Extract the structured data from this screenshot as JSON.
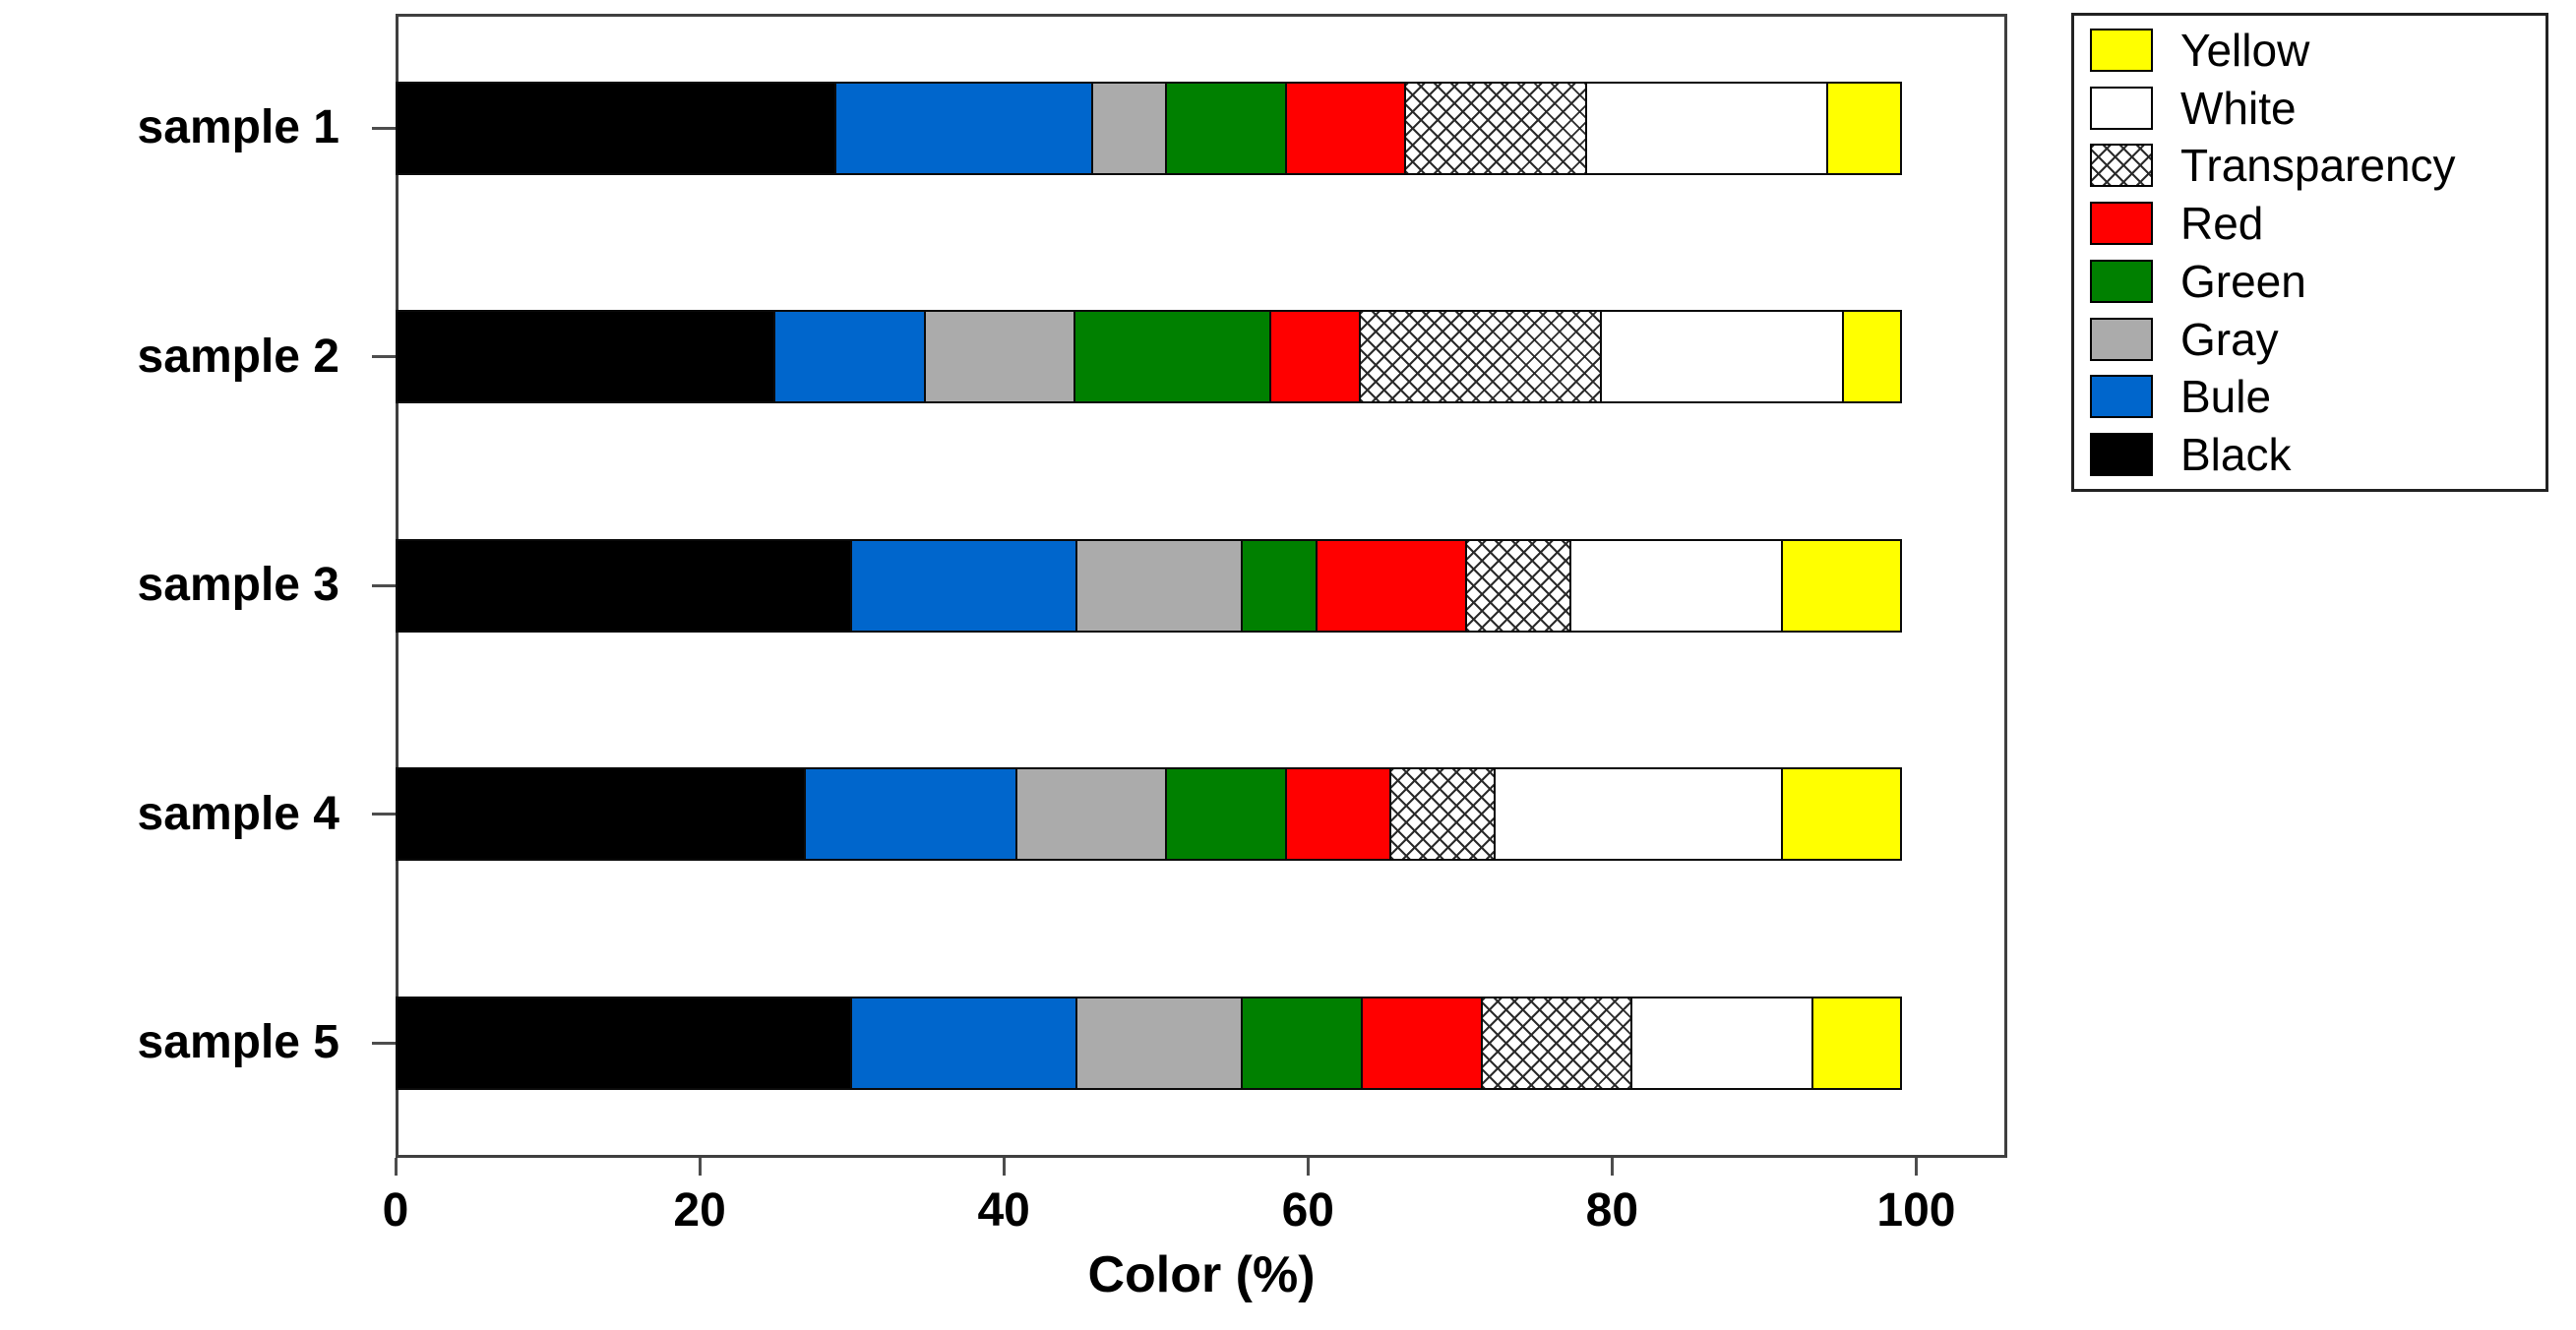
{
  "chart_data": {
    "type": "bar",
    "orientation": "horizontal-stacked",
    "title": "",
    "xlabel": "Color (%)",
    "ylabel": "",
    "categories": [
      "sample 1",
      "sample 2",
      "sample 3",
      "sample 4",
      "sample 5"
    ],
    "series": [
      {
        "name": "Black",
        "color": "#000000",
        "values": [
          29,
          25,
          30,
          27,
          30
        ]
      },
      {
        "name": "Bule",
        "color": "#0066CC",
        "values": [
          17,
          10,
          15,
          14,
          15
        ]
      },
      {
        "name": "Gray",
        "color": "#ABABAB",
        "values": [
          5,
          10,
          11,
          10,
          11
        ]
      },
      {
        "name": "Green",
        "color": "#008000",
        "values": [
          8,
          13,
          5,
          8,
          8
        ]
      },
      {
        "name": "Red",
        "color": "#FF0000",
        "values": [
          8,
          6,
          10,
          7,
          8
        ]
      },
      {
        "name": "Transparency",
        "color": "hatch",
        "values": [
          12,
          16,
          7,
          7,
          10
        ]
      },
      {
        "name": "White",
        "color": "#FFFFFF",
        "values": [
          16,
          16,
          14,
          19,
          12
        ]
      },
      {
        "name": "Yellow",
        "color": "#FFFF00",
        "values": [
          5,
          4,
          8,
          8,
          6
        ]
      }
    ],
    "legend": [
      "Yellow",
      "White",
      "Transparency",
      "Red",
      "Green",
      "Gray",
      "Bule",
      "Black"
    ],
    "legend_position": "upper-right-outside",
    "x_ticks": [
      0,
      20,
      40,
      60,
      80,
      100
    ],
    "xlim": [
      0,
      106
    ],
    "grid": false,
    "axis_color": "#3f3f3f"
  }
}
